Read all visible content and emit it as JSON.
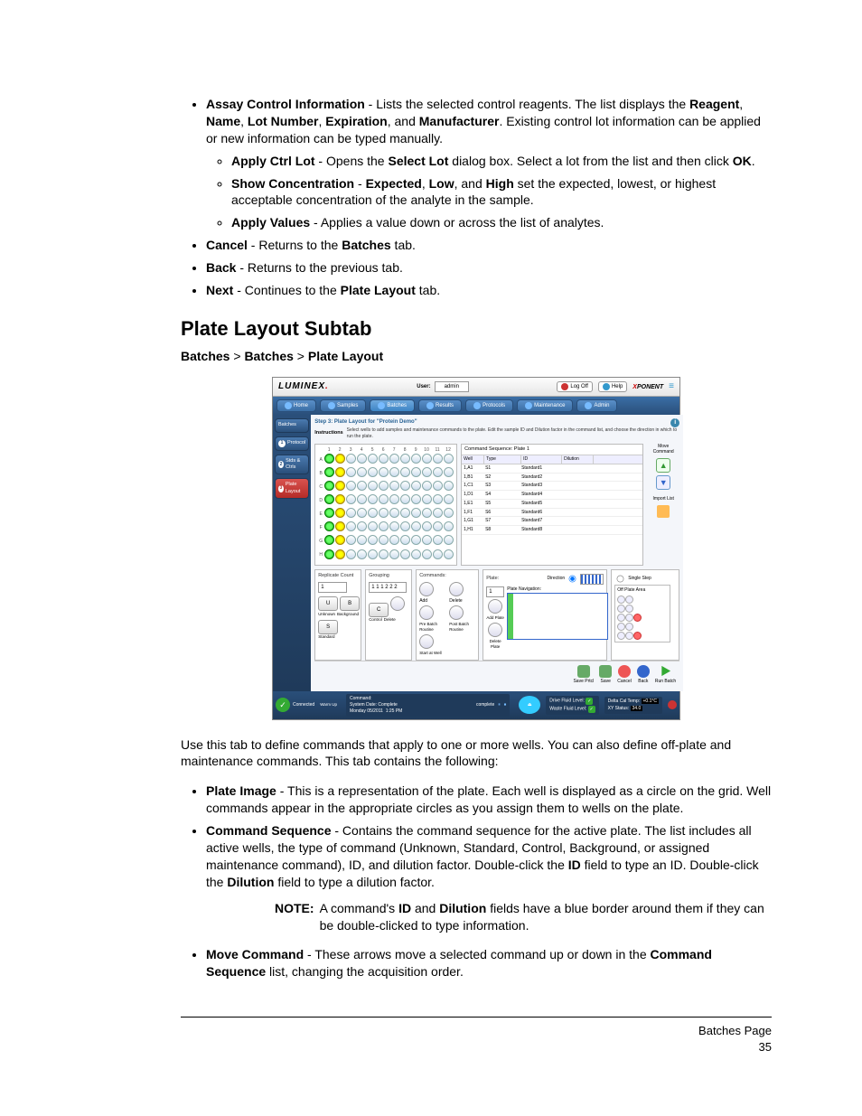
{
  "bullets_top": {
    "assay_control_info": {
      "term": "Assay Control Information",
      "text1": " - Lists the selected control reagents. The list displays the ",
      "b1": "Reagent",
      "c1": ", ",
      "b2": "Name",
      "c2": ", ",
      "b3": "Lot Number",
      "c3": ", ",
      "b4": "Expiration",
      "c4": ", and ",
      "b5": "Manufacturer",
      "text2": ". Existing control lot information can be applied or new information can be typed manually."
    },
    "apply_ctrl_lot": {
      "term": "Apply Ctrl Lot",
      "t1": " - Opens the ",
      "b1": "Select Lot",
      "t2": " dialog box. Select a lot from the list and then click ",
      "b2": "OK",
      "t3": "."
    },
    "show_conc": {
      "term": "Show Concentration",
      "t1": " - ",
      "b1": "Expected",
      "c1": ", ",
      "b2": "Low",
      "c2": ", and ",
      "b3": "High",
      "t2": " set the expected, lowest, or highest acceptable concentration of the analyte in the sample."
    },
    "apply_values": {
      "term": "Apply Values",
      "t1": " - Applies a value down or across the list of analytes."
    },
    "cancel": {
      "term": "Cancel",
      "t1": " - Returns to the ",
      "b1": "Batches",
      "t2": " tab."
    },
    "back": {
      "term": "Back",
      "t1": " - Returns to the previous tab."
    },
    "next": {
      "term": "Next",
      "t1": " - Continues to the ",
      "b1": "Plate Layout",
      "t2": " tab."
    }
  },
  "heading": "Plate Layout Subtab",
  "breadcrumb": {
    "a": "Batches",
    "b": "Batches",
    "c": "Plate Layout"
  },
  "screenshot": {
    "logo": "LUMINEX",
    "user_label": "User:",
    "user_value": "admin",
    "logoff": "Log Off",
    "help": "Help",
    "brand": "PONENT",
    "nav": [
      "Home",
      "Samples",
      "Batches",
      "Results",
      "Protocols",
      "Maintenance",
      "Admin"
    ],
    "side": [
      {
        "label": "Batches",
        "num": ""
      },
      {
        "label": "Protocol",
        "num": "1"
      },
      {
        "label": "Stds & Ctrls",
        "num": "2"
      },
      {
        "label": "Plate Layout",
        "num": "3"
      }
    ],
    "step_title": "Step 3: Plate Layout for \"Protein Demo\"",
    "instructions_label": "Instructions",
    "instructions_text": "Select wells to add samples and maintenance commands to the plate. Edit the sample ID and Dilution factor in the command list, and choose the direction in which to run the plate.",
    "plate_cols": [
      "1",
      "2",
      "3",
      "4",
      "5",
      "6",
      "7",
      "8",
      "9",
      "10",
      "11",
      "12"
    ],
    "plate_rows": [
      "A",
      "B",
      "C",
      "D",
      "E",
      "F",
      "G",
      "H"
    ],
    "seq_title": "Command Sequence: Plate 1",
    "seq_headers": {
      "well": "Well",
      "type": "Type",
      "id": "ID",
      "dil": "Dilution"
    },
    "seq_rows": [
      {
        "well": "1,A1",
        "type": "S1",
        "id": "Standard1",
        "dil": ""
      },
      {
        "well": "1,B1",
        "type": "S2",
        "id": "Standard2",
        "dil": ""
      },
      {
        "well": "1,C1",
        "type": "S3",
        "id": "Standard3",
        "dil": ""
      },
      {
        "well": "1,D1",
        "type": "S4",
        "id": "Standard4",
        "dil": ""
      },
      {
        "well": "1,E1",
        "type": "S5",
        "id": "Standard5",
        "dil": ""
      },
      {
        "well": "1,F1",
        "type": "S6",
        "id": "Standard6",
        "dil": ""
      },
      {
        "well": "1,G1",
        "type": "S7",
        "id": "Standard7",
        "dil": ""
      },
      {
        "well": "1,H1",
        "type": "S8",
        "id": "Standard8",
        "dil": ""
      }
    ],
    "move_cmd_label": "Move Command",
    "import_list_label": "Import List",
    "replicate": {
      "title": "Replicate Count",
      "value": "1"
    },
    "grouping": {
      "title": "Grouping",
      "value": "1 1 1 2 2 2"
    },
    "cmd_buttons": {
      "u": "U",
      "b": "B",
      "c": "C",
      "s": "S",
      "unknown": "Unknown",
      "background": "Background",
      "control": "Control",
      "standard": "Standard"
    },
    "commands_title": "Commands:",
    "commands": {
      "add": "Add",
      "delete": "Delete",
      "prebatch": "Pre Batch Routine",
      "postbatch": "Post Batch Routine",
      "startat": "Start at Well"
    },
    "plate_panel": {
      "title": "Plate:",
      "value": "1",
      "direction": "Direction",
      "add_plate": "Add Plate",
      "delete_plate": "Delete Plate",
      "platenav": "Plate Navigation:",
      "off_plate": "Off Plate Area",
      "single_step": "Single Step"
    },
    "actions": {
      "saveprt": "Save Prtcl",
      "save": "Save",
      "cancel": "Cancel",
      "back": "Back",
      "run": "Run Batch"
    },
    "status": {
      "connected": "Connected",
      "warmup": "Warm Up",
      "command": "Command:",
      "complete": "complete",
      "sysdate_label": "System Date: Complete",
      "date": "Monday 05/2011",
      "time": "1:25 PM",
      "shfluid": "Drive Fluid Level:",
      "waste": "Waste Fluid Level:",
      "delta": "Delta Cal Temp:",
      "delta_val": "+0.1°C",
      "xy": "XY Status:",
      "xy_val": "34.0"
    }
  },
  "para_use": "Use this tab to define commands that apply to one or more wells. You can also define off-plate and maintenance commands. This tab contains the following:",
  "bullets_bottom": {
    "plate_image": {
      "term": "Plate Image",
      "t1": " - This is a representation of the plate. Each well is displayed as a circle on the grid. Well commands appear in the appropriate circles as you assign them to wells on the plate."
    },
    "cmd_seq": {
      "term": "Command Sequence",
      "t1": " - Contains the command sequence for the active plate. The list includes all active wells, the type of command (Unknown, Standard, Control, Background, or assigned maintenance command), ID, and dilution factor. Double-click the ",
      "b1": "ID",
      "t2": " field to type an ID. Double-click the ",
      "b2": "Dilution",
      "t3": " field to type a dilution factor."
    },
    "note": {
      "label": "NOTE:",
      "t1": "A command's ",
      "b1": "ID",
      "t2": " and ",
      "b2": "Dilution",
      "t3": " fields have a blue border around them if they can be double-clicked to type information."
    },
    "move_cmd": {
      "term": "Move Command",
      "t1": " - These arrows move a selected command up or down in the ",
      "b1": "Command Sequence",
      "t2": " list, changing the acquisition order."
    }
  },
  "footer": {
    "title": "Batches Page",
    "page": "35"
  }
}
